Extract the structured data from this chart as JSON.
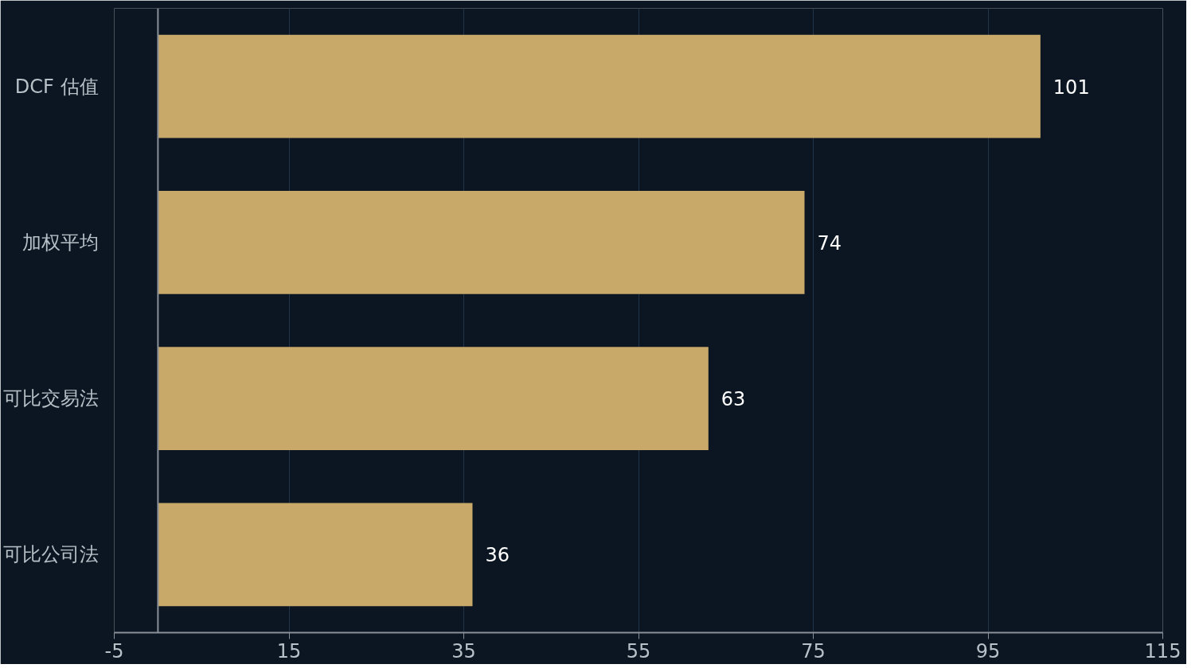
{
  "chart_data": {
    "type": "bar",
    "orientation": "horizontal",
    "categories": [
      "DCF 估值",
      "加权平均",
      "可比交易法",
      "可比公司法"
    ],
    "values": [
      101,
      74,
      63,
      36
    ],
    "color": "#c8a96a",
    "xlim": [
      -5,
      115
    ],
    "xticks": [
      -5,
      15,
      35,
      55,
      75,
      95,
      115
    ],
    "grid": "x",
    "data_labels": true
  }
}
